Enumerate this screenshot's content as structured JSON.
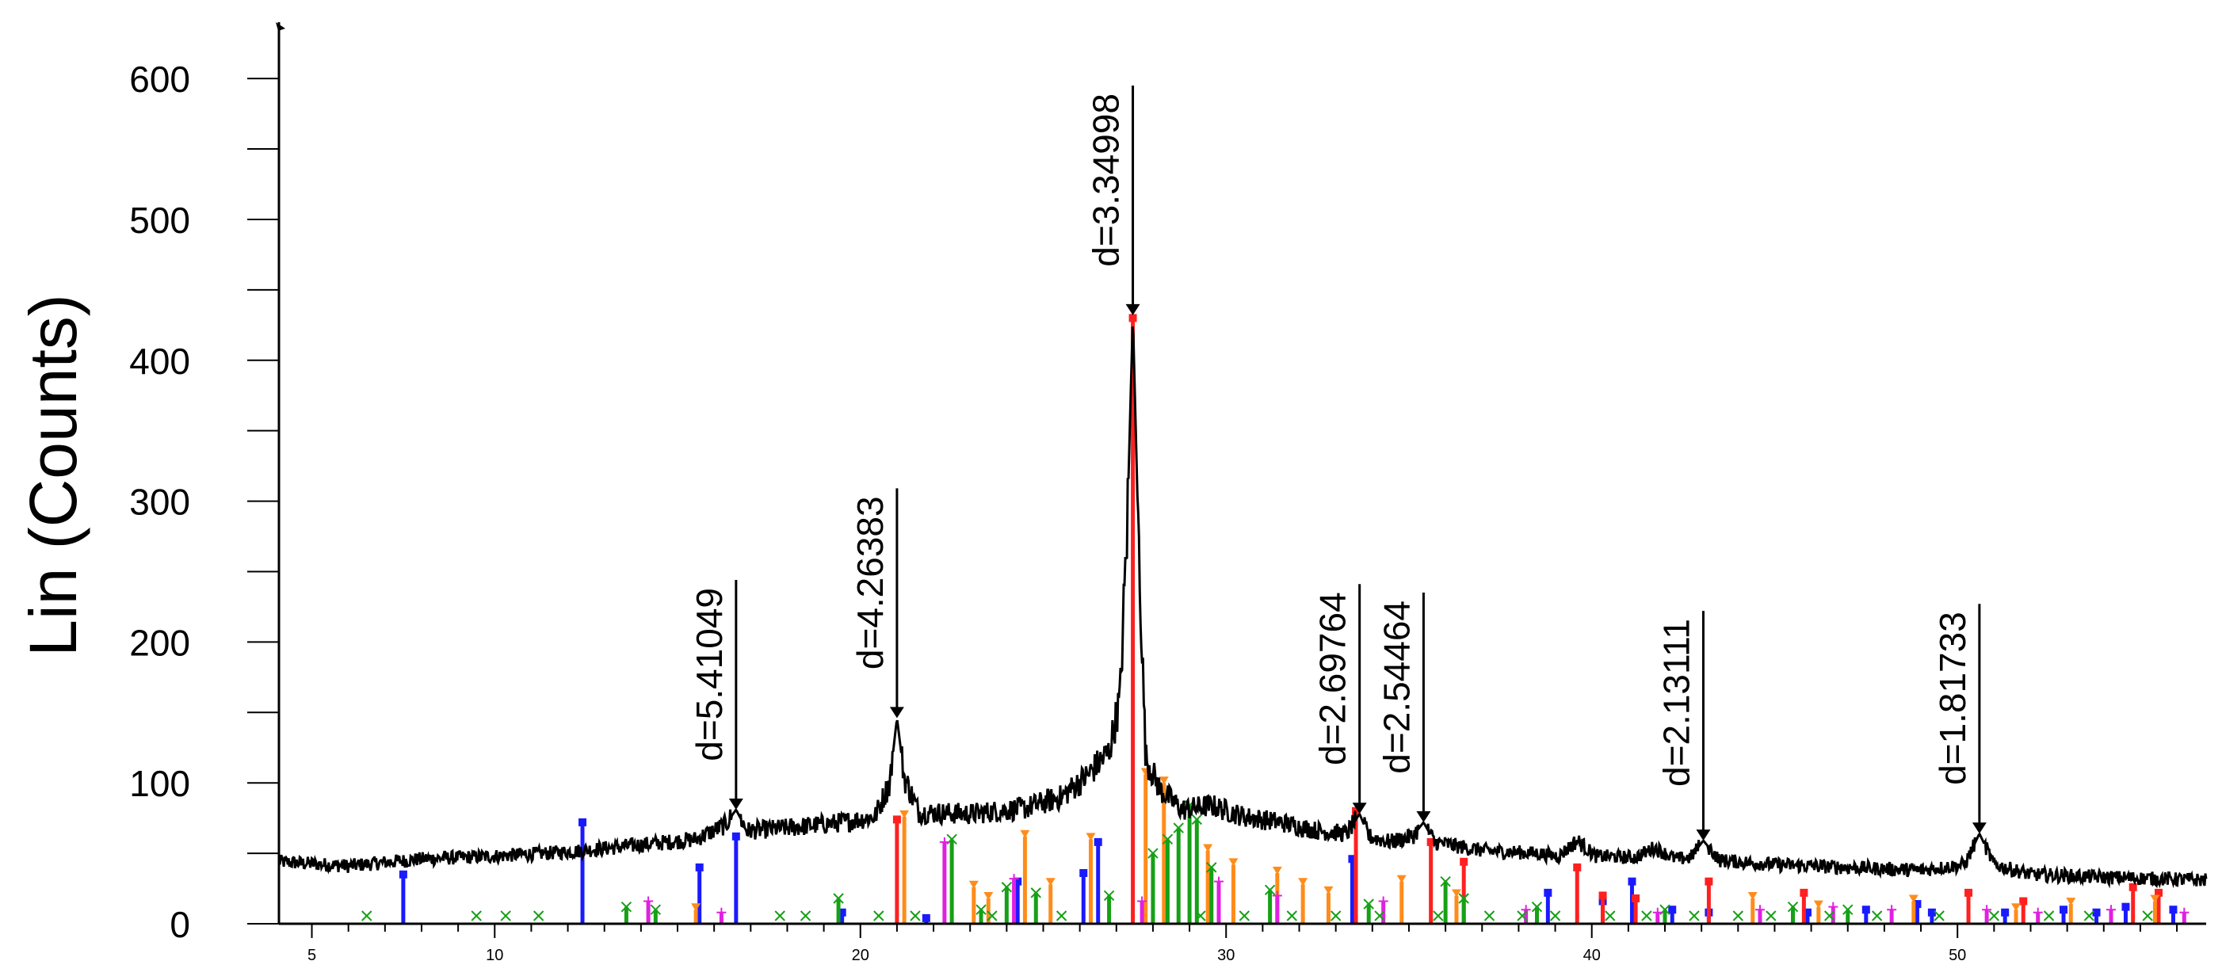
{
  "chart_data": {
    "type": "line",
    "title": "",
    "xlabel": "",
    "ylabel": "Lin (Counts)",
    "xlim": [
      4.1,
      56.8
    ],
    "ylim": [
      0,
      640
    ],
    "xticks": [
      5,
      10,
      20,
      30,
      40,
      50
    ],
    "yticks": [
      0,
      100,
      200,
      300,
      400,
      500,
      600
    ],
    "grid": false,
    "series": [
      {
        "color": "#000000",
        "points": [
          [
            4.1,
            44
          ],
          [
            6,
            41
          ],
          [
            8,
            46
          ],
          [
            10,
            48
          ],
          [
            12,
            51
          ],
          [
            14,
            56
          ],
          [
            15.5,
            60
          ],
          [
            16.3,
            70
          ],
          [
            16.6,
            81
          ],
          [
            16.9,
            66
          ],
          [
            18,
            68
          ],
          [
            19.5,
            72
          ],
          [
            20.4,
            76
          ],
          [
            20.8,
            100
          ],
          [
            21.0,
            146
          ],
          [
            21.2,
            104
          ],
          [
            21.6,
            79
          ],
          [
            23,
            78
          ],
          [
            24.5,
            82
          ],
          [
            25.5,
            90
          ],
          [
            26.2,
            105
          ],
          [
            26.8,
            122
          ],
          [
            27.1,
            160
          ],
          [
            27.3,
            285
          ],
          [
            27.45,
            432
          ],
          [
            27.6,
            280
          ],
          [
            27.8,
            118
          ],
          [
            28.2,
            95
          ],
          [
            28.8,
            81
          ],
          [
            29.6,
            84
          ],
          [
            30.5,
            76
          ],
          [
            31.5,
            72
          ],
          [
            32.5,
            66
          ],
          [
            33.3,
            64
          ],
          [
            33.65,
            78
          ],
          [
            33.9,
            62
          ],
          [
            34.5,
            58
          ],
          [
            35.1,
            62
          ],
          [
            35.4,
            72
          ],
          [
            35.7,
            58
          ],
          [
            37,
            52
          ],
          [
            38.5,
            50
          ],
          [
            39.1,
            48
          ],
          [
            39.6,
            59
          ],
          [
            40.1,
            48
          ],
          [
            41.2,
            47
          ],
          [
            41.7,
            54
          ],
          [
            42.3,
            46
          ],
          [
            42.7,
            47
          ],
          [
            43.05,
            59
          ],
          [
            43.5,
            45
          ],
          [
            45,
            42
          ],
          [
            47,
            40
          ],
          [
            49,
            38
          ],
          [
            50.2,
            42
          ],
          [
            50.6,
            64
          ],
          [
            51.0,
            42
          ],
          [
            52,
            35
          ],
          [
            54,
            33
          ],
          [
            56.8,
            31
          ]
        ]
      }
    ],
    "annotations": [
      {
        "label": "d=5.41049",
        "x": 16.6,
        "y": 81
      },
      {
        "label": "d=4.26383",
        "x": 21.0,
        "y": 146
      },
      {
        "label": "d=3.34998",
        "x": 27.45,
        "y": 432
      },
      {
        "label": "d=2.69764",
        "x": 33.65,
        "y": 78
      },
      {
        "label": "d=2.54464",
        "x": 35.4,
        "y": 72
      },
      {
        "label": "d=2.13111",
        "x": 43.05,
        "y": 59
      },
      {
        "label": "d=1.81733",
        "x": 50.6,
        "y": 64
      }
    ],
    "reference_lines": [
      {
        "color": "#1a1aff",
        "marker": "square",
        "lines": [
          [
            7.5,
            35
          ],
          [
            12.4,
            72
          ],
          [
            15.6,
            40
          ],
          [
            16.6,
            62
          ],
          [
            19.5,
            8
          ],
          [
            21.8,
            4
          ],
          [
            24.3,
            30
          ],
          [
            26.1,
            36
          ],
          [
            26.5,
            58
          ],
          [
            33.45,
            46
          ],
          [
            38.8,
            22
          ],
          [
            40.3,
            16
          ],
          [
            41.1,
            30
          ],
          [
            42.2,
            10
          ],
          [
            43.2,
            8
          ],
          [
            45.9,
            8
          ],
          [
            47.5,
            10
          ],
          [
            48.9,
            14
          ],
          [
            49.3,
            8
          ],
          [
            51.3,
            8
          ],
          [
            52.9,
            10
          ],
          [
            53.8,
            8
          ],
          [
            54.6,
            12
          ],
          [
            55.9,
            10
          ]
        ]
      },
      {
        "color": "#ff2020",
        "marker": "square",
        "lines": [
          [
            21.0,
            74
          ],
          [
            27.45,
            430
          ],
          [
            33.55,
            80
          ],
          [
            35.6,
            58
          ],
          [
            36.5,
            44
          ],
          [
            39.6,
            40
          ],
          [
            40.3,
            20
          ],
          [
            41.2,
            18
          ],
          [
            43.2,
            30
          ],
          [
            45.8,
            22
          ],
          [
            50.3,
            22
          ],
          [
            51.8,
            16
          ],
          [
            54.8,
            26
          ],
          [
            55.5,
            22
          ]
        ]
      },
      {
        "color": "#ff8c1a",
        "marker": "triangle",
        "lines": [
          [
            15.5,
            10
          ],
          [
            21.2,
            76
          ],
          [
            23.1,
            26
          ],
          [
            23.5,
            18
          ],
          [
            24.5,
            62
          ],
          [
            25.2,
            28
          ],
          [
            26.3,
            60
          ],
          [
            27.8,
            106
          ],
          [
            28.3,
            100
          ],
          [
            29.5,
            52
          ],
          [
            30.2,
            42
          ],
          [
            31.4,
            36
          ],
          [
            32.1,
            28
          ],
          [
            32.8,
            22
          ],
          [
            34.8,
            30
          ],
          [
            36.3,
            20
          ],
          [
            44.4,
            18
          ],
          [
            46.2,
            12
          ],
          [
            48.8,
            16
          ],
          [
            51.6,
            10
          ],
          [
            53.1,
            14
          ],
          [
            55.4,
            16
          ]
        ]
      },
      {
        "color": "#16a016",
        "marker": "cross",
        "lines": [
          [
            13.6,
            12
          ],
          [
            14.4,
            10
          ],
          [
            19.4,
            18
          ],
          [
            22.5,
            60
          ],
          [
            23.3,
            10
          ],
          [
            24.0,
            26
          ],
          [
            24.8,
            22
          ],
          [
            26.8,
            20
          ],
          [
            28.0,
            50
          ],
          [
            28.4,
            60
          ],
          [
            28.7,
            68
          ],
          [
            29.0,
            84
          ],
          [
            29.2,
            74
          ],
          [
            29.6,
            40
          ],
          [
            31.2,
            24
          ],
          [
            33.9,
            14
          ],
          [
            36.0,
            30
          ],
          [
            36.5,
            18
          ],
          [
            38.5,
            12
          ],
          [
            42.0,
            10
          ],
          [
            45.5,
            12
          ],
          [
            47.0,
            10
          ]
        ]
      },
      {
        "color": "#e020e0",
        "marker": "plus",
        "lines": [
          [
            14.2,
            16
          ],
          [
            16.2,
            8
          ],
          [
            22.3,
            58
          ],
          [
            24.2,
            32
          ],
          [
            27.7,
            16
          ],
          [
            29.8,
            30
          ],
          [
            31.4,
            20
          ],
          [
            34.3,
            16
          ],
          [
            38.2,
            10
          ],
          [
            41.8,
            8
          ],
          [
            44.6,
            10
          ],
          [
            46.6,
            12
          ],
          [
            48.2,
            10
          ],
          [
            50.8,
            10
          ],
          [
            52.2,
            8
          ],
          [
            54.2,
            10
          ],
          [
            56.2,
            8
          ]
        ]
      }
    ],
    "scatter_markers": {
      "color": "#16a016",
      "marker": "cross",
      "x": [
        6.5,
        9.5,
        10.3,
        11.2,
        17.8,
        18.5,
        20.5,
        21.5,
        23.6,
        25.5,
        29.3,
        30.5,
        31.8,
        33.0,
        34.2,
        35.8,
        37.2,
        38.1,
        39.0,
        40.5,
        41.5,
        42.8,
        44.0,
        44.9,
        46.5,
        47.8,
        49.5,
        51.0,
        52.5,
        53.6,
        55.2
      ]
    }
  }
}
